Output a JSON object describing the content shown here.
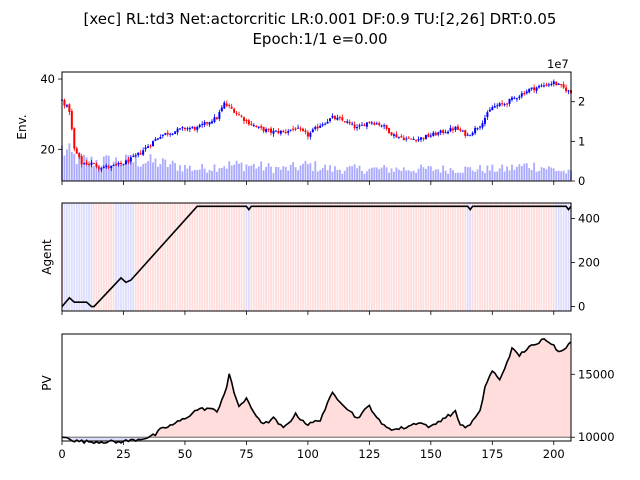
{
  "chart_data": {
    "title_line1": "[xec] RL:td3 Net:actorcritic LR:0.001 DF:0.9 TU:[2,26] DRT:0.05",
    "title_line2": "Epoch:1/1 e=0.00",
    "x_ticks": [
      0,
      25,
      50,
      75,
      100,
      125,
      150,
      175,
      200
    ],
    "xlim": [
      0,
      207
    ],
    "env": {
      "type": "candlestick",
      "ylabel": "Env.",
      "ylim": [
        11,
        42
      ],
      "y_ticks": [
        20,
        40
      ],
      "volume_ylim": [
        0,
        2.75
      ],
      "volume_ticks": [
        0,
        1,
        2
      ],
      "volume_scale_label": "1e7",
      "close_keypoints": [
        [
          0,
          34
        ],
        [
          3,
          31
        ],
        [
          5,
          20
        ],
        [
          8,
          16
        ],
        [
          12,
          16
        ],
        [
          15,
          15
        ],
        [
          20,
          15
        ],
        [
          25,
          16
        ],
        [
          30,
          18
        ],
        [
          35,
          21
        ],
        [
          40,
          24
        ],
        [
          45,
          25
        ],
        [
          50,
          26
        ],
        [
          55,
          26
        ],
        [
          60,
          28
        ],
        [
          63,
          29
        ],
        [
          66,
          33
        ],
        [
          70,
          31
        ],
        [
          75,
          28
        ],
        [
          80,
          26
        ],
        [
          85,
          25
        ],
        [
          90,
          25
        ],
        [
          95,
          26
        ],
        [
          100,
          24
        ],
        [
          105,
          27
        ],
        [
          110,
          29
        ],
        [
          115,
          28
        ],
        [
          120,
          26
        ],
        [
          125,
          28
        ],
        [
          130,
          27
        ],
        [
          135,
          24
        ],
        [
          140,
          23
        ],
        [
          145,
          23
        ],
        [
          150,
          24
        ],
        [
          155,
          25
        ],
        [
          160,
          26
        ],
        [
          165,
          24
        ],
        [
          170,
          27
        ],
        [
          175,
          32
        ],
        [
          180,
          33
        ],
        [
          185,
          35
        ],
        [
          190,
          37
        ],
        [
          195,
          38
        ],
        [
          200,
          39
        ],
        [
          205,
          37
        ],
        [
          207,
          36
        ]
      ],
      "volume_keypoints": [
        [
          0,
          0.8
        ],
        [
          5,
          0.6
        ],
        [
          10,
          0.5
        ],
        [
          15,
          0.5
        ],
        [
          25,
          0.5
        ],
        [
          35,
          0.5
        ],
        [
          45,
          0.4
        ],
        [
          55,
          0.3
        ],
        [
          65,
          0.4
        ],
        [
          75,
          0.4
        ],
        [
          90,
          0.3
        ],
        [
          100,
          0.4
        ],
        [
          110,
          0.3
        ],
        [
          125,
          0.3
        ],
        [
          140,
          0.3
        ],
        [
          150,
          0.3
        ],
        [
          160,
          0.3
        ],
        [
          170,
          0.3
        ],
        [
          180,
          0.3
        ],
        [
          190,
          0.4
        ],
        [
          200,
          0.3
        ],
        [
          207,
          0.2
        ]
      ],
      "colors": {
        "up": "#0000ff",
        "down": "#ff0000",
        "volume": "#aaaaff"
      }
    },
    "agent": {
      "type": "line",
      "ylabel": "Agent",
      "ylim": [
        -20,
        470
      ],
      "y_ticks": [
        0,
        200,
        400
      ],
      "position_keypoints": [
        [
          0,
          0
        ],
        [
          3,
          40
        ],
        [
          5,
          20
        ],
        [
          10,
          20
        ],
        [
          12,
          0
        ],
        [
          13,
          0
        ],
        [
          24,
          130
        ],
        [
          26,
          110
        ],
        [
          28,
          120
        ],
        [
          55,
          455
        ],
        [
          75,
          455
        ],
        [
          76,
          440
        ],
        [
          77,
          455
        ],
        [
          165,
          455
        ],
        [
          166,
          440
        ],
        [
          167,
          455
        ],
        [
          205,
          455
        ],
        [
          206,
          440
        ],
        [
          207,
          455
        ]
      ],
      "blue_bg_ranges": [
        [
          1,
          5
        ],
        [
          6,
          12
        ],
        [
          22,
          29
        ],
        [
          75,
          76
        ],
        [
          165,
          166
        ],
        [
          201,
          207
        ]
      ],
      "colors": {
        "line": "#000000",
        "bg_long": "#ffdddd",
        "bg_short": "#ddddff"
      }
    },
    "pv": {
      "type": "area",
      "ylabel": "PV",
      "ylim": [
        9700,
        18200
      ],
      "y_ticks": [
        10000,
        15000
      ],
      "baseline": 10000,
      "pv_keypoints": [
        [
          0,
          10000
        ],
        [
          3,
          9950
        ],
        [
          5,
          9700
        ],
        [
          10,
          9650
        ],
        [
          15,
          9640
        ],
        [
          20,
          9650
        ],
        [
          22,
          9600
        ],
        [
          26,
          9700
        ],
        [
          30,
          9800
        ],
        [
          35,
          10000
        ],
        [
          38,
          10200
        ],
        [
          40,
          10600
        ],
        [
          45,
          11000
        ],
        [
          50,
          11500
        ],
        [
          55,
          12200
        ],
        [
          60,
          12300
        ],
        [
          63,
          12000
        ],
        [
          67,
          14000
        ],
        [
          68,
          15000
        ],
        [
          70,
          13500
        ],
        [
          72,
          12500
        ],
        [
          75,
          13000
        ],
        [
          78,
          12000
        ],
        [
          82,
          11000
        ],
        [
          86,
          11500
        ],
        [
          90,
          10700
        ],
        [
          95,
          11800
        ],
        [
          100,
          11000
        ],
        [
          105,
          11400
        ],
        [
          110,
          13500
        ],
        [
          115,
          12500
        ],
        [
          120,
          11500
        ],
        [
          125,
          12500
        ],
        [
          130,
          11000
        ],
        [
          135,
          10600
        ],
        [
          140,
          10800
        ],
        [
          145,
          11200
        ],
        [
          150,
          10800
        ],
        [
          155,
          11500
        ],
        [
          160,
          12000
        ],
        [
          162,
          11000
        ],
        [
          165,
          10800
        ],
        [
          170,
          12000
        ],
        [
          172,
          14000
        ],
        [
          175,
          15300
        ],
        [
          178,
          14500
        ],
        [
          181,
          16000
        ],
        [
          183,
          17000
        ],
        [
          186,
          16500
        ],
        [
          190,
          17200
        ],
        [
          193,
          17300
        ],
        [
          196,
          17900
        ],
        [
          199,
          17500
        ],
        [
          202,
          16800
        ],
        [
          205,
          17200
        ],
        [
          207,
          17500
        ]
      ],
      "colors": {
        "line": "#000000",
        "fill_above": "#ffdddd",
        "fill_below": "#ddddff",
        "baseline": "#808080"
      }
    }
  }
}
